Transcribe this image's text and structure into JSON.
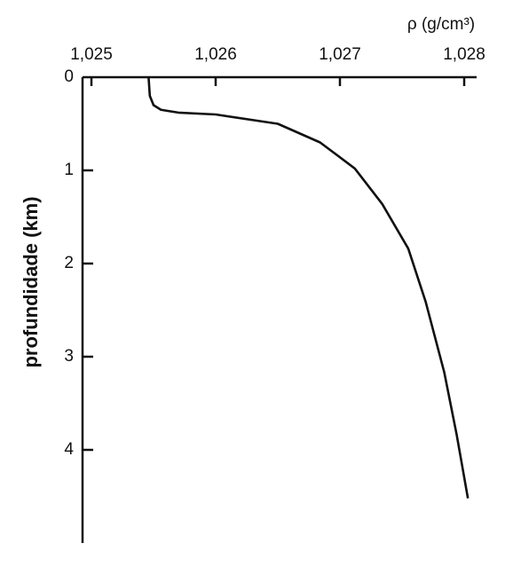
{
  "chart_data": {
    "type": "line",
    "xlabel": "ρ (g/cm³)",
    "ylabel": "profundidade (km)",
    "x": [
      1.02546,
      1.02547,
      1.0255,
      1.02556,
      1.0257,
      1.026,
      1.0265,
      1.02684,
      1.02712,
      1.02734,
      1.02755,
      1.02769,
      1.02784,
      1.02794,
      1.02803
    ],
    "series": [
      {
        "color": "#111111",
        "values": [
          0,
          0.2,
          0.3,
          0.35,
          0.38,
          0.4,
          0.5,
          0.7,
          0.98,
          1.36,
          1.84,
          2.41,
          3.17,
          3.84,
          4.52
        ]
      }
    ],
    "xlim": [
      1.025,
      1.0281
    ],
    "xticks": [
      {
        "value": 1.025,
        "label": "1,025"
      },
      {
        "value": 1.026,
        "label": "1,026"
      },
      {
        "value": 1.027,
        "label": "1,027"
      },
      {
        "value": 1.028,
        "label": "1,028"
      }
    ],
    "ylim": [
      0,
      5
    ],
    "yticks": [
      0,
      1,
      2,
      3,
      4
    ],
    "y_inverted": true,
    "x_axis_position": "top"
  }
}
